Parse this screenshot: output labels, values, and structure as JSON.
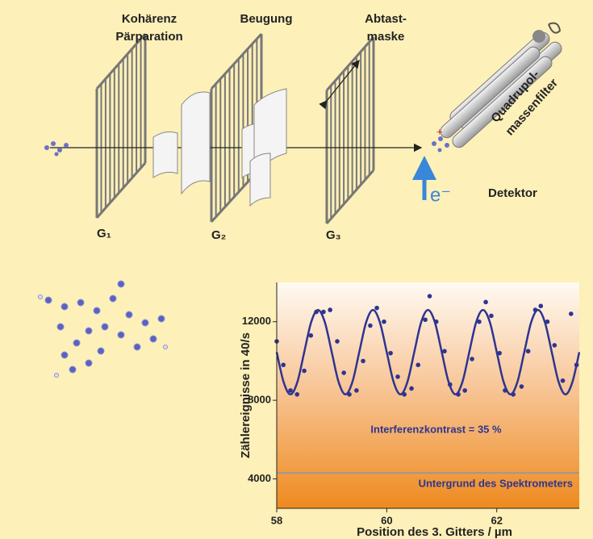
{
  "diagram": {
    "coherence": [
      "Kohärenz",
      "Pärparation"
    ],
    "diffraction": "Beugung",
    "scan_mask": [
      "Abtast-",
      "maske"
    ],
    "filter": [
      "Quadrupol-",
      "massenfilter"
    ],
    "detector": "Detektor",
    "gratings": [
      "G₁",
      "G₂",
      "G₃"
    ],
    "electron": "e⁻"
  },
  "chart_data": {
    "type": "scatter",
    "xlabel": "Position des 3. Gitters / µm",
    "ylabel": "Zählereignisse  in  40/s",
    "xlim": [
      58,
      63.5
    ],
    "ylim": [
      2500,
      14000
    ],
    "xticks": [
      58,
      60,
      62
    ],
    "yticks": [
      4000,
      8000,
      12000
    ],
    "annotation": "Interferenzkontrast = 35 %",
    "hline": {
      "value": 4300,
      "label": "Untergrund des Spektrometers",
      "color": "#999999"
    },
    "points": {
      "color": "#2e3590",
      "x": [
        58.0,
        58.12,
        58.25,
        58.37,
        58.5,
        58.62,
        58.72,
        58.85,
        58.97,
        59.1,
        59.22,
        59.32,
        59.45,
        59.57,
        59.7,
        59.82,
        59.95,
        60.07,
        60.2,
        60.32,
        60.45,
        60.57,
        60.7,
        60.78,
        60.9,
        61.05,
        61.15,
        61.3,
        61.42,
        61.55,
        61.68,
        61.8,
        61.9,
        62.05,
        62.15,
        62.3,
        62.45,
        62.57,
        62.7,
        62.8,
        62.92,
        63.05,
        63.2,
        63.35,
        63.45
      ],
      "y": [
        11000,
        9800,
        8500,
        8300,
        9500,
        11300,
        12500,
        12500,
        12600,
        11000,
        9400,
        8300,
        8500,
        10000,
        11800,
        12700,
        12000,
        10400,
        9200,
        8300,
        8600,
        9800,
        12100,
        13300,
        12000,
        10500,
        8800,
        8300,
        8500,
        10100,
        12000,
        13000,
        12300,
        10400,
        8500,
        8300,
        8700,
        10500,
        12600,
        12800,
        12000,
        10800,
        9000,
        12400,
        9800
      ]
    },
    "fit": {
      "color": "#2e3590",
      "x": [
        58.0,
        58.125,
        58.25,
        58.375,
        58.5,
        58.625,
        58.75,
        58.875,
        59.0,
        59.125,
        59.25,
        59.375,
        59.5,
        59.625,
        59.75,
        59.875,
        60.0,
        60.125,
        60.25,
        60.375,
        60.5,
        60.625,
        60.75,
        60.875,
        61.0,
        61.125,
        61.25,
        61.375,
        61.5,
        61.625,
        61.75,
        61.875,
        62.0,
        62.125,
        62.25,
        62.375,
        62.5,
        62.625,
        62.75,
        62.875,
        63.0,
        63.125,
        63.25,
        63.375,
        63.5
      ],
      "y": [
        10450,
        8930,
        8300,
        8930,
        10450,
        11970,
        12600,
        11970,
        10450,
        8930,
        8300,
        8930,
        10450,
        11970,
        12600,
        11970,
        10450,
        8930,
        8300,
        8930,
        10450,
        11970,
        12600,
        11970,
        10450,
        8930,
        8300,
        8930,
        10450,
        11970,
        12600,
        11970,
        10450,
        8930,
        8300,
        8930,
        10450,
        11970,
        12600,
        11970,
        10450,
        8930,
        8300,
        8930,
        10450
      ]
    }
  }
}
